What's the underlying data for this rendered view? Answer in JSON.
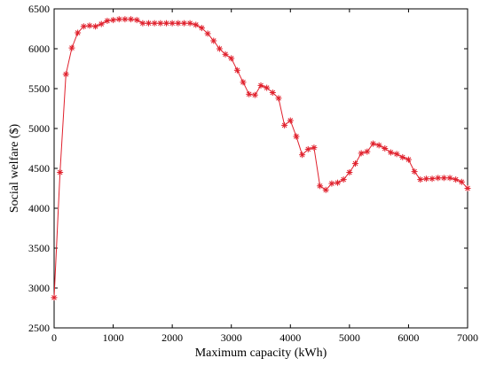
{
  "chart_data": {
    "type": "line",
    "title": "",
    "xlabel": "Maximum capacity (kWh)",
    "ylabel": "Social welfare ($)",
    "xlim": [
      0,
      7000
    ],
    "ylim": [
      2500,
      6500
    ],
    "xticks": [
      0,
      1000,
      2000,
      3000,
      4000,
      5000,
      6000,
      7000
    ],
    "yticks": [
      2500,
      3000,
      3500,
      4000,
      4500,
      5000,
      5500,
      6000,
      6500
    ],
    "grid": false,
    "legend": "none",
    "marker": "asterisk",
    "color": "#e0202c",
    "series": [
      {
        "x": [
          0,
          100,
          200,
          300,
          400,
          500,
          600,
          700,
          800,
          900,
          1000,
          1100,
          1200,
          1300,
          1400,
          1500,
          1600,
          1700,
          1800,
          1900,
          2000,
          2100,
          2200,
          2300,
          2400,
          2500,
          2600,
          2700,
          2800,
          2900,
          3000,
          3100,
          3200,
          3300,
          3400,
          3500,
          3600,
          3700,
          3800,
          3900,
          4000,
          4100,
          4200,
          4300,
          4400,
          4500,
          4600,
          4700,
          4800,
          4900,
          5000,
          5100,
          5200,
          5300,
          5400,
          5500,
          5600,
          5700,
          5800,
          5900,
          6000,
          6100,
          6200,
          6300,
          6400,
          6500,
          6600,
          6700,
          6800,
          6900,
          7000
        ],
        "y": [
          2880,
          4450,
          5680,
          6010,
          6200,
          6280,
          6290,
          6280,
          6310,
          6350,
          6360,
          6370,
          6370,
          6370,
          6360,
          6320,
          6320,
          6320,
          6320,
          6320,
          6320,
          6320,
          6320,
          6320,
          6300,
          6260,
          6190,
          6100,
          6000,
          5930,
          5880,
          5730,
          5580,
          5430,
          5420,
          5540,
          5510,
          5450,
          5380,
          5040,
          5100,
          4900,
          4670,
          4740,
          4760,
          4280,
          4230,
          4310,
          4320,
          4360,
          4450,
          4560,
          4690,
          4710,
          4810,
          4790,
          4750,
          4700,
          4680,
          4640,
          4610,
          4460,
          4360,
          4370,
          4370,
          4380,
          4380,
          4380,
          4360,
          4330,
          4250
        ]
      }
    ]
  }
}
